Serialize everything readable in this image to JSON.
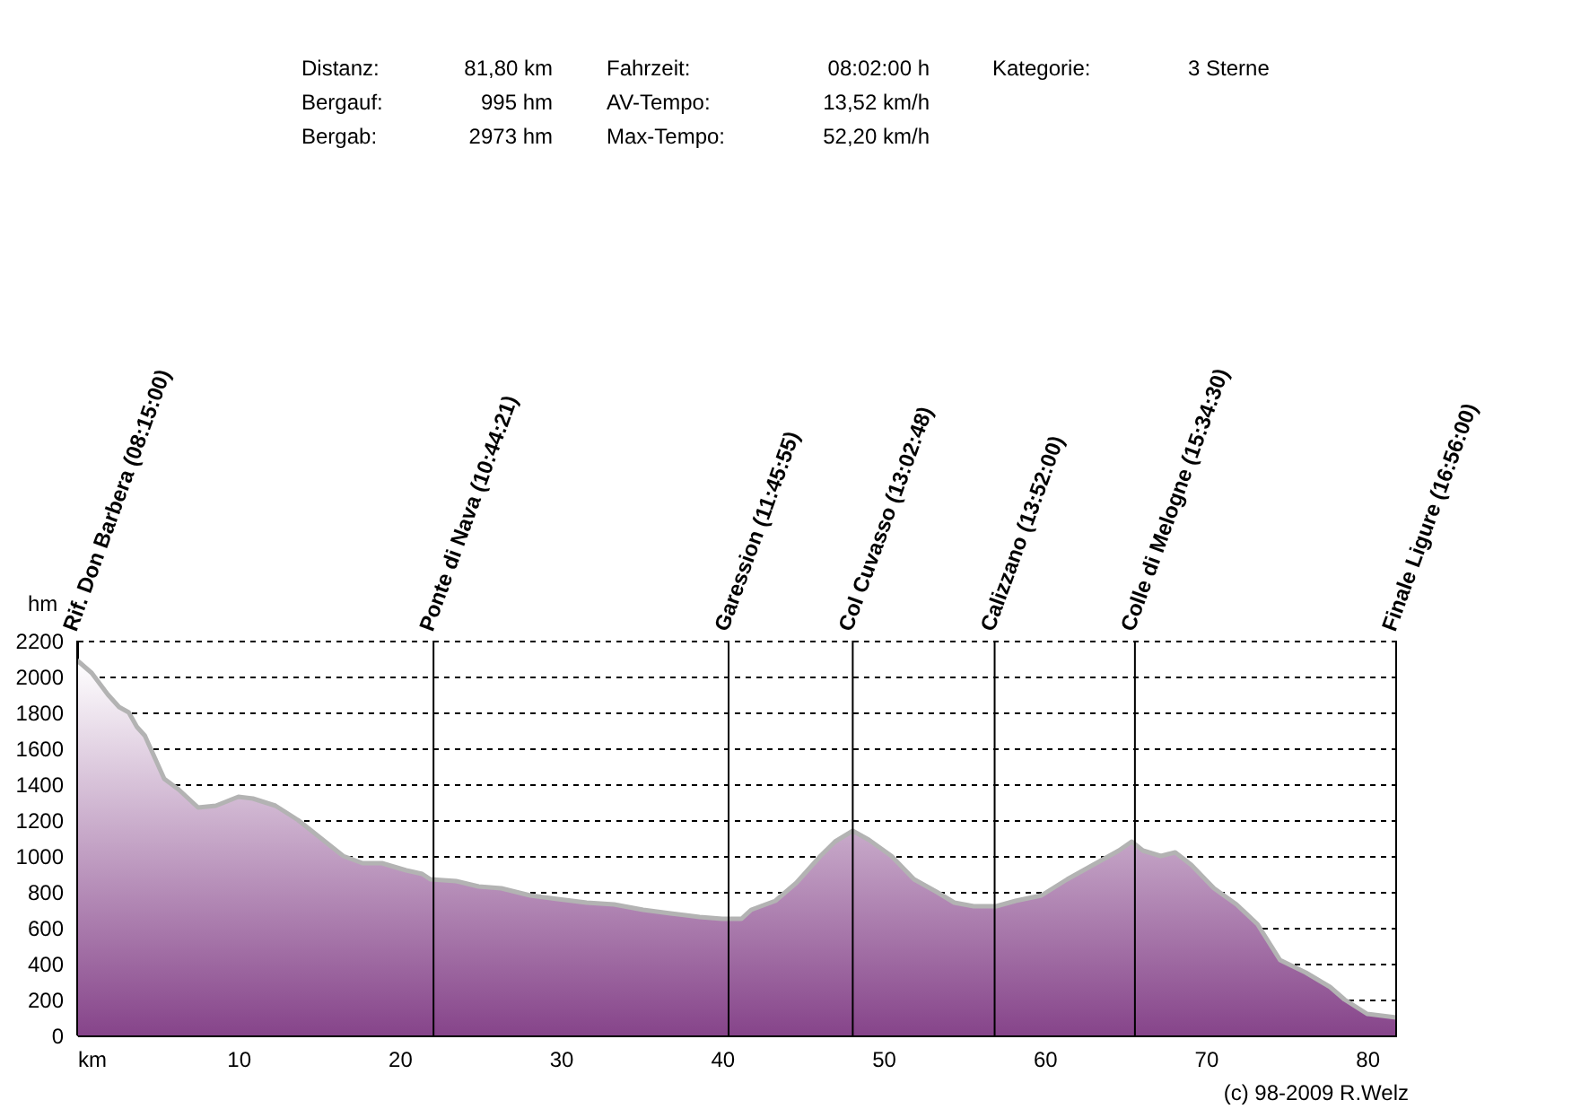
{
  "chart_data": {
    "type": "area",
    "xlabel": "km",
    "ylabel": "hm",
    "x": [
      0,
      0.9,
      1.9,
      2.6,
      3.2,
      3.7,
      4.2,
      4.7,
      5.4,
      6.3,
      7.5,
      8.6,
      10.0,
      10.9,
      12.3,
      13.7,
      15.1,
      16.5,
      17.7,
      18.9,
      20.4,
      21.4,
      21.9,
      23.5,
      24.9,
      26.3,
      28.1,
      29.8,
      31.6,
      33.3,
      35.1,
      36.8,
      38.6,
      40.0,
      41.2,
      41.8,
      43.3,
      44.6,
      46.1,
      47.0,
      48.1,
      49.1,
      50.5,
      51.9,
      53.3,
      54.4,
      55.6,
      57.0,
      58.2,
      59.8,
      61.4,
      63.0,
      64.6,
      65.4,
      66.1,
      67.2,
      68.1,
      69.1,
      70.5,
      71.9,
      73.2,
      74.6,
      76.2,
      77.7,
      78.6,
      80.0,
      81.8
    ],
    "series": [
      {
        "color": "#86448a",
        "values": [
          2090,
          2020,
          1900,
          1830,
          1800,
          1720,
          1670,
          1570,
          1430,
          1370,
          1270,
          1280,
          1330,
          1320,
          1280,
          1200,
          1100,
          1000,
          960,
          960,
          920,
          900,
          870,
          860,
          830,
          820,
          780,
          760,
          740,
          730,
          700,
          680,
          660,
          650,
          650,
          700,
          750,
          850,
          1000,
          1080,
          1140,
          1090,
          1000,
          870,
          800,
          740,
          720,
          720,
          750,
          780,
          870,
          950,
          1030,
          1080,
          1030,
          1000,
          1020,
          950,
          820,
          730,
          620,
          420,
          350,
          270,
          200,
          120,
          100
        ]
      }
    ],
    "xlim": [
      0,
      81.8
    ],
    "xticks": [
      10,
      20,
      30,
      40,
      50,
      60,
      70,
      80
    ],
    "ylim": [
      0,
      2200
    ],
    "yticks": [
      0,
      200,
      400,
      600,
      800,
      1000,
      1200,
      1400,
      1600,
      1800,
      2000,
      2200
    ],
    "grid": "y",
    "legend": false,
    "ref_lines": [
      {
        "axis": "x",
        "value": 0
      },
      {
        "axis": "x",
        "value": 22.1
      },
      {
        "axis": "x",
        "value": 40.4
      },
      {
        "axis": "x",
        "value": 48.1
      },
      {
        "axis": "x",
        "value": 56.9
      },
      {
        "axis": "x",
        "value": 65.6
      },
      {
        "axis": "x",
        "value": 81.8
      }
    ],
    "annotations": [
      {
        "text": "Rif. Don Barbera (08:15:00)",
        "x": 0,
        "y": 2200
      },
      {
        "text": "Ponte di Nava (10:44:21)",
        "x": 22.1,
        "y": 2200
      },
      {
        "text": "Garession (11:45:55)",
        "x": 40.4,
        "y": 2200
      },
      {
        "text": "Col Cuvasso (13:02:48)",
        "x": 48.1,
        "y": 2200
      },
      {
        "text": "Calizzano (13:52:00)",
        "x": 56.9,
        "y": 2200
      },
      {
        "text": "Colle di Melogne (15:34:30)",
        "x": 65.6,
        "y": 2200
      },
      {
        "text": "Finale Ligure (16:56:00)",
        "x": 81.8,
        "y": 2200
      },
      "Distanz:",
      "81,80 km",
      "Fahrzeit:",
      "08:02:00 h",
      "Kategorie:",
      "3 Sterne",
      "Bergauf:",
      "995 hm",
      "AV-Tempo:",
      "13,52 km/h",
      "Bergab:",
      "2973 hm",
      "Max-Tempo:",
      "52,20 km/h",
      "(c) 98-2009 R.Welz"
    ]
  }
}
